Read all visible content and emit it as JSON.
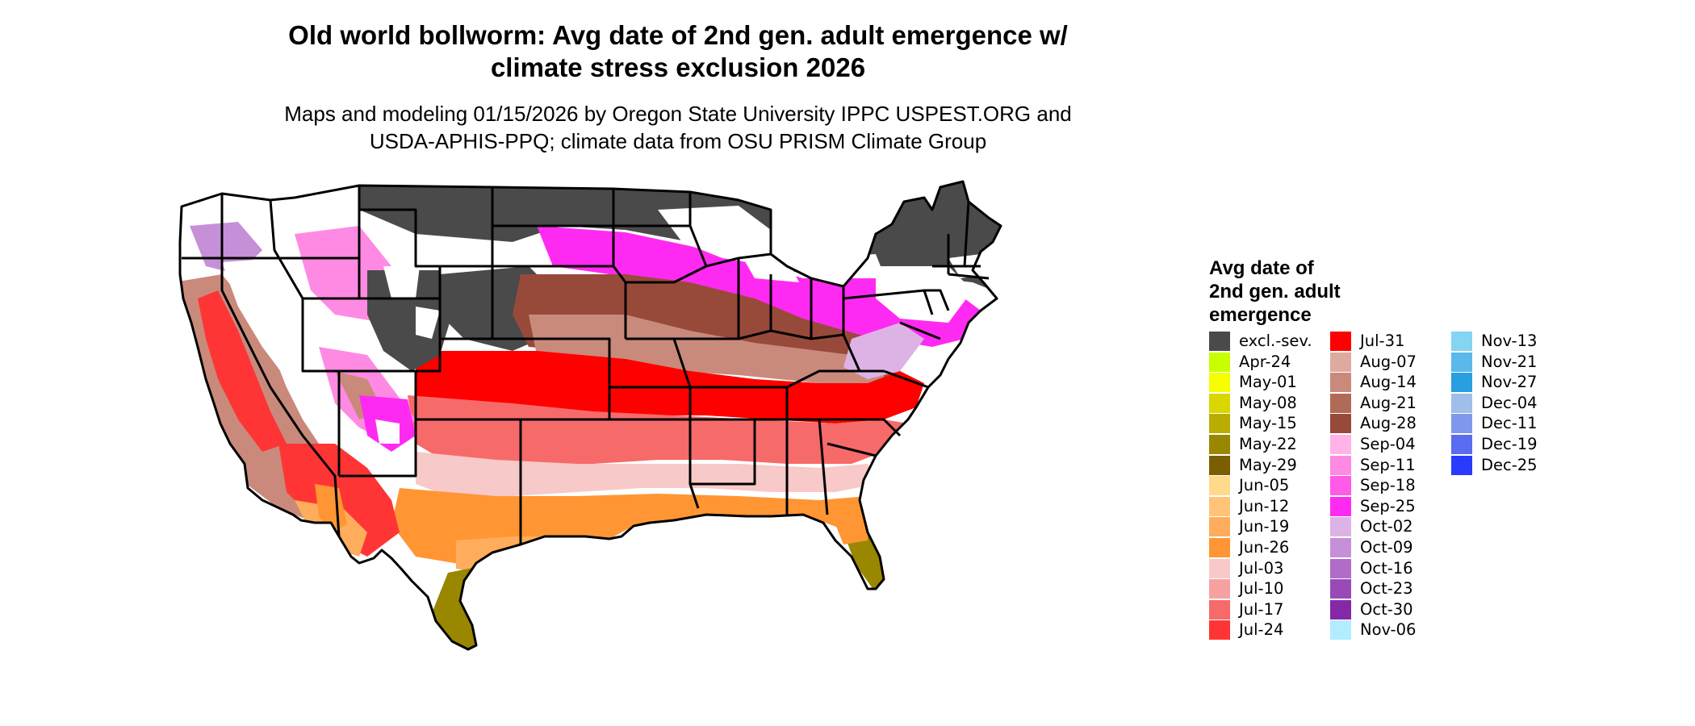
{
  "title": {
    "line1": "Old world bollworm: Avg date of 2nd gen. adult emergence w/",
    "line2": "climate stress exclusion 2026"
  },
  "subtitle": {
    "line1": "Maps and modeling 01/15/2026 by Oregon State University IPPC USPEST.ORG and",
    "line2": "USDA-APHIS-PPQ; climate data from OSU PRISM Climate Group"
  },
  "legend": {
    "title_lines": [
      "Avg date of",
      "2nd gen. adult",
      "emergence"
    ],
    "columns": [
      [
        {
          "label": "excl.-sev.",
          "color": "#4a4a4a"
        },
        {
          "label": "Apr-24",
          "color": "#c8ff00"
        },
        {
          "label": "May-01",
          "color": "#f5ff00"
        },
        {
          "label": "May-08",
          "color": "#d9d600"
        },
        {
          "label": "May-15",
          "color": "#b8ad00"
        },
        {
          "label": "May-22",
          "color": "#998700"
        },
        {
          "label": "May-29",
          "color": "#7a5e00"
        },
        {
          "label": "Jun-05",
          "color": "#ffd98c"
        },
        {
          "label": "Jun-12",
          "color": "#ffc477"
        },
        {
          "label": "Jun-19",
          "color": "#ffad5c"
        },
        {
          "label": "Jun-26",
          "color": "#ff9633"
        },
        {
          "label": "Jul-03",
          "color": "#f7c9c9"
        },
        {
          "label": "Jul-10",
          "color": "#f7a0a0"
        },
        {
          "label": "Jul-17",
          "color": "#f76a6a"
        },
        {
          "label": "Jul-24",
          "color": "#ff3535"
        }
      ],
      [
        {
          "label": "Jul-31",
          "color": "#ff0000"
        },
        {
          "label": "Aug-07",
          "color": "#deaaa0"
        },
        {
          "label": "Aug-14",
          "color": "#c98a7c"
        },
        {
          "label": "Aug-21",
          "color": "#b26a58"
        },
        {
          "label": "Aug-28",
          "color": "#984a3a"
        },
        {
          "label": "Sep-04",
          "color": "#ffb3e6"
        },
        {
          "label": "Sep-11",
          "color": "#ff8ae3"
        },
        {
          "label": "Sep-18",
          "color": "#ff5ae8"
        },
        {
          "label": "Sep-25",
          "color": "#ff2af2"
        },
        {
          "label": "Oct-02",
          "color": "#ddb3e6"
        },
        {
          "label": "Oct-09",
          "color": "#c690d8"
        },
        {
          "label": "Oct-16",
          "color": "#b06cc8"
        },
        {
          "label": "Oct-23",
          "color": "#9a4ab8"
        },
        {
          "label": "Oct-30",
          "color": "#8428a8"
        },
        {
          "label": "Nov-06",
          "color": "#b3ecff"
        }
      ],
      [
        {
          "label": "Nov-13",
          "color": "#85d4f2"
        },
        {
          "label": "Nov-21",
          "color": "#5ab8ea"
        },
        {
          "label": "Nov-27",
          "color": "#2a9fe0"
        },
        {
          "label": "Dec-04",
          "color": "#a0bfe8"
        },
        {
          "label": "Dec-11",
          "color": "#7f98ec"
        },
        {
          "label": "Dec-19",
          "color": "#5a6cf0"
        },
        {
          "label": "Dec-25",
          "color": "#2a3aff"
        }
      ]
    ]
  }
}
